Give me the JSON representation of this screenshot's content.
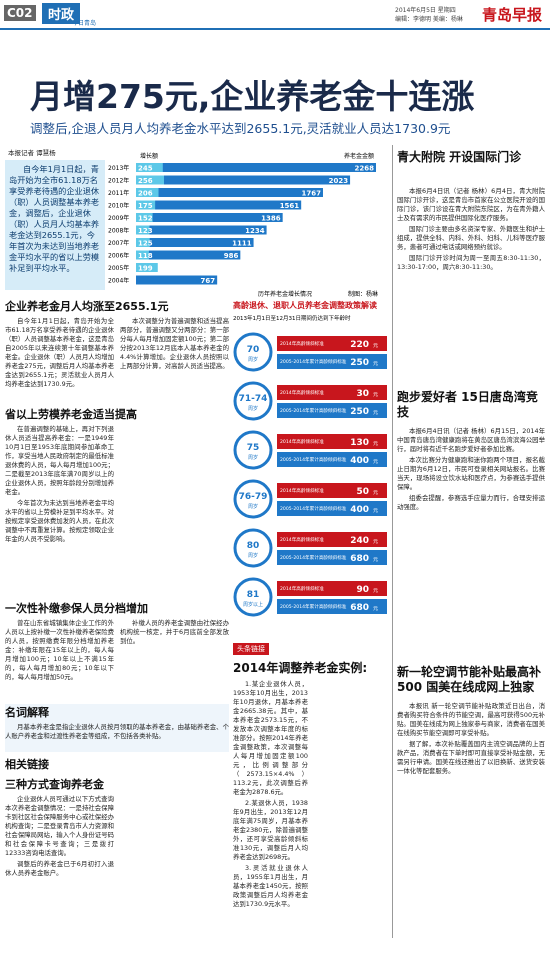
{
  "header": {
    "section": "C02",
    "column": "时政",
    "sub": "今日青岛",
    "date": "2014年6月5日 星期四",
    "editor": "编辑：李德明 美编：杨琳",
    "logo": "青岛早报"
  },
  "headline": {
    "title": "月增275元,企业养老金十连涨",
    "subtitle": "调整后,企退人员月人均养老金水平达到2655.1元,灵活就业人员达1730.9元",
    "byline": "本报记者 谭慧杨"
  },
  "lead": "自今年1月1日起，青岛开始为全市61.18万名享受养老待遇的企业退休（职）人员调整基本养老金，调整后，企业退休（职）人员月人均基本养老金达到2655.1元，今年首次为未达到当地养老金平均水平的省以上劳模补足到平均水平。",
  "chart": {
    "label_increase": "增长额",
    "label_total": "养老金金额",
    "categories": [
      "2013年",
      "2012年",
      "2011年",
      "2010年",
      "2009年",
      "2008年",
      "2007年",
      "2006年",
      "2005年",
      "2004年"
    ],
    "increase": [
      245,
      256,
      206,
      175,
      152,
      123,
      125,
      118,
      199,
      null
    ],
    "total": [
      2268,
      2023,
      1767,
      1561,
      1386,
      1234,
      1111,
      986,
      null,
      767
    ],
    "caption": "历年养老金增长情况",
    "credit": "制图：杨琳"
  },
  "sections": [
    {
      "heading": "企业养老金月人均涨至2655.1元",
      "paragraphs": [
        "自今年1月1日起，青岛开始为全市61.18万名享受养老待遇的企业退休（职）人员调整基本养老金，这是青岛自2005年以来连续第十年调整基本养老金。企业退休（职）人员月人均增加养老金275元，调整后月人均基本养老金达到2655.1元；灵活就业人员月人均养老金达到1730.9元。",
        "本次调整分为普遍调整和适当提高两部分，普遍调整又分两部分：第一部分每人每月增加固定额100元；第二部分按2013年12月底本人基本养老金的4.4%计算增加。企业退休人员按照以上两部分计算，对高龄人员适当提高。"
      ]
    },
    {
      "heading": "省以上劳模养老金适当提高",
      "paragraphs": [
        "在普遍调整的基础上，再对下列退休人员适当提高养老金：一是1949年10月1日至1953年底期间参加革命工作，享受当地人民政府制定的最低标准退休费的人员，每人每月增加100元；二是截至2013年底年满70周岁以上的企业退休人员，按照年龄段分别增加养老金。",
        "今年首次为未达到当地养老金平均水平的省以上劳模补足到平均水平。对按规定享受退休费加发的人员，在此次调整中不再重复计算。按规定领取企业年金的人员不受影响。"
      ]
    },
    {
      "heading": "一次性补缴参保人员分档增加",
      "paragraphs": [
        "曾在山东省城镇集体企业工作的外人员以上按补缴一次性补缴养老保险费的人员，按照缴费年限分档增加养老金：补缴年限在15年以上的，每人每月增加100元；10年以上不满15年的，每人每月增加80元；10年以下的，每人每月增加50元。",
        "补缴人员的养老金调整由社保经办机构统一核定，并于6月底前全部发放到位。"
      ]
    },
    {
      "heading": "名词解释",
      "paragraphs": [
        "月基本养老金是指企业退休人员按月领取的基本养老金，由基础养老金、个人账户养老金和过渡性养老金等组成，不包括各类补贴。"
      ]
    },
    {
      "heading": "相关链接",
      "paragraphs": []
    },
    {
      "heading": "三种方式查询养老金",
      "paragraphs": [
        "企业退休人员可通过以下方式查询本次养老金调整情况：一是持社会保障卡到社区社会保障服务中心或社保经办机构查询；二是登录青岛市人力资源和社会保障局网站，输入个人身份证号码和社会保障卡号查询；三是拨打12333咨询电话查询。",
        "调整后的养老金已于6月初打入退休人员养老金账户。"
      ]
    }
  ],
  "infographic": {
    "title": "高龄退休、退职人员养老金调整政策解读",
    "subtitle": "2013年1月1日至12月31日期间仍达到下年龄时",
    "legend_a": "2014年高龄倾斜标准",
    "legend_b": "2005-2014年累计高龄倾斜标准",
    "unit": "元",
    "rows": [
      {
        "age": "70",
        "suffix": "周岁",
        "a": "220",
        "b": "250"
      },
      {
        "age": "71-74",
        "suffix": "周岁",
        "a": "30",
        "b": "250"
      },
      {
        "age": "75",
        "suffix": "周岁",
        "a": "130",
        "b": "400"
      },
      {
        "age": "76-79",
        "suffix": "周岁",
        "a": "50",
        "b": "400"
      },
      {
        "age": "80",
        "suffix": "周岁",
        "a": "240",
        "b": "680"
      },
      {
        "age": "81",
        "suffix": "周岁以上",
        "a": "90",
        "b": "680"
      }
    ]
  },
  "example": {
    "label": "头条链接",
    "heading": "2014年调整养老金实例:",
    "paragraphs": [
      "1.某企业退休人员，1953年10月出生，2013年10月退休，月基本养老金2665.38元。其中，基本养老金2573.15元，不发放本次调整本年度的标准部分。按照2014年养老金调整政策，本次调整每人每月增加固定额100元，比例调整部分（2573.15×4.4%）113.2元，此次调整后养老金为2878.6元。",
      "2.某退休人员，1938年9月出生，2013年12月底年满75周岁，月基本养老金2380元，除普遍调整外，还可享受高龄倾斜标准130元，调整后月人均养老金达到2698元。",
      "3.灵活就业退休人员，1955年1月出生，月基本养老金1450元，按照政策调整后月人均养老金达到1730.9元水平。"
    ]
  },
  "right": [
    {
      "heading": "青大附院 开设国际门诊",
      "paragraphs": [
        "本报6月4日讯（记者 杨林）6月4日，青大附院国际门诊开诊，这是青岛市首家在公立医院开设的国际门诊，该门诊设在青大附院东院区，为在青外籍人士及有需求的市民提供国际化医疗服务。",
        "国际门诊主要由多名资深专家、外籍医生和护士组成，提供全科、内科、外科、妇科、儿科等医疗服务，患者可通过电话或网络预约就诊。",
        "国际门诊开诊时间为周一至周五8:30-11:30，13:30-17:00，周六8:30-11:30。"
      ]
    },
    {
      "heading": "跑步爱好者 15日唐岛湾竞技",
      "paragraphs": [
        "本报6月4日讯（记者 杨林）6月15日，2014年中国青岛唐岛湾健康跑将在黄岛区唐岛湾滨海公园举行，届时将有近千名跑步爱好者参加比赛。",
        "本次比赛分为健康跑和迷你跑两个项目，报名截止日期为6月12日，市民可登录相关网站报名。比赛当天，现场将设立饮水站和医疗点，为参赛选手提供保障。",
        "组委会提醒，参赛选手应量力而行，合理安排运动强度。"
      ]
    },
    {
      "heading": "新一轮空调节能补贴最高补500 国美在线成网上独家",
      "paragraphs": [
        "本报讯 新一轮空调节能补贴政策近日出台，消费者购买符合条件的节能空调，最高可获得500元补贴。国美在线成为网上独家参与商家，消费者在国美在线购买节能空调即可享受补贴。",
        "据了解，本次补贴覆盖国内主流空调品牌的上百款产品，消费者在下单时即可直接享受补贴金额，无需另行申请。国美在线还推出了以旧换新、送货安装一体化等配套服务。"
      ]
    }
  ]
}
